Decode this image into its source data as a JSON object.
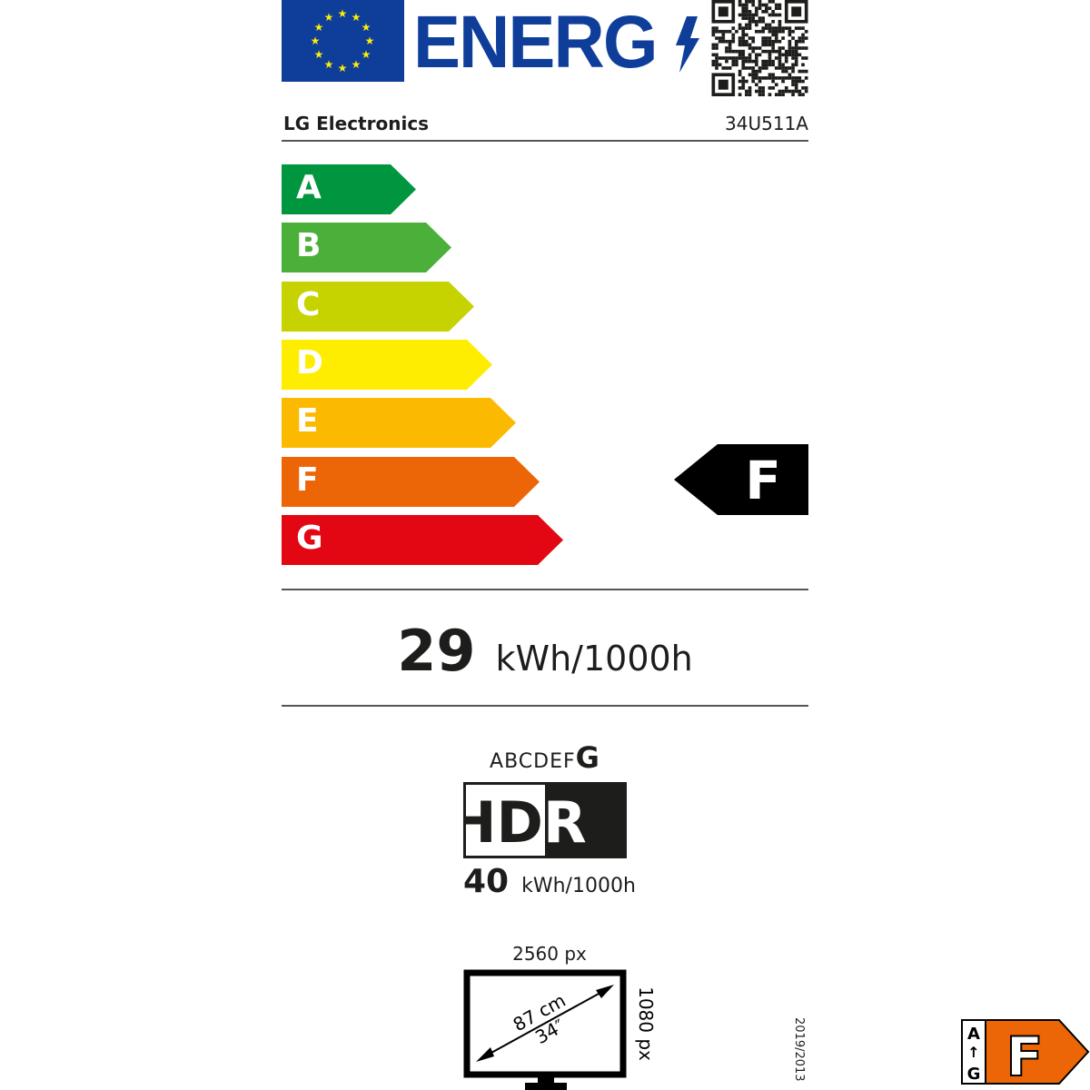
{
  "header": {
    "title": "ENERG",
    "supplier": "LG Electronics",
    "model": "34U511A",
    "icons": [
      "eu-flag",
      "lightning-icon",
      "qr-code"
    ]
  },
  "scale": {
    "classes": [
      {
        "label": "A",
        "color": "#00963f"
      },
      {
        "label": "B",
        "color": "#4bb03a"
      },
      {
        "label": "C",
        "color": "#c6d300"
      },
      {
        "label": "D",
        "color": "#ffed00"
      },
      {
        "label": "E",
        "color": "#fbba00"
      },
      {
        "label": "F",
        "color": "#ec6608"
      },
      {
        "label": "G",
        "color": "#e30613"
      }
    ],
    "rating": "F"
  },
  "sdr": {
    "value": "29",
    "unit": "kWh/1000h"
  },
  "hdr": {
    "scale_prefix": "ABCDEF",
    "rating": "G",
    "label_left": "HD",
    "label_right": "R",
    "value": "40",
    "unit": "kWh/1000h"
  },
  "screen": {
    "h_res": "2560 px",
    "v_res": "1080 px",
    "diag_cm": "87 cm",
    "diag_in": "34″"
  },
  "regulation": "2019/2013",
  "badge": {
    "top": "A",
    "bottom": "G",
    "rating": "F",
    "color": "#ec6608"
  }
}
